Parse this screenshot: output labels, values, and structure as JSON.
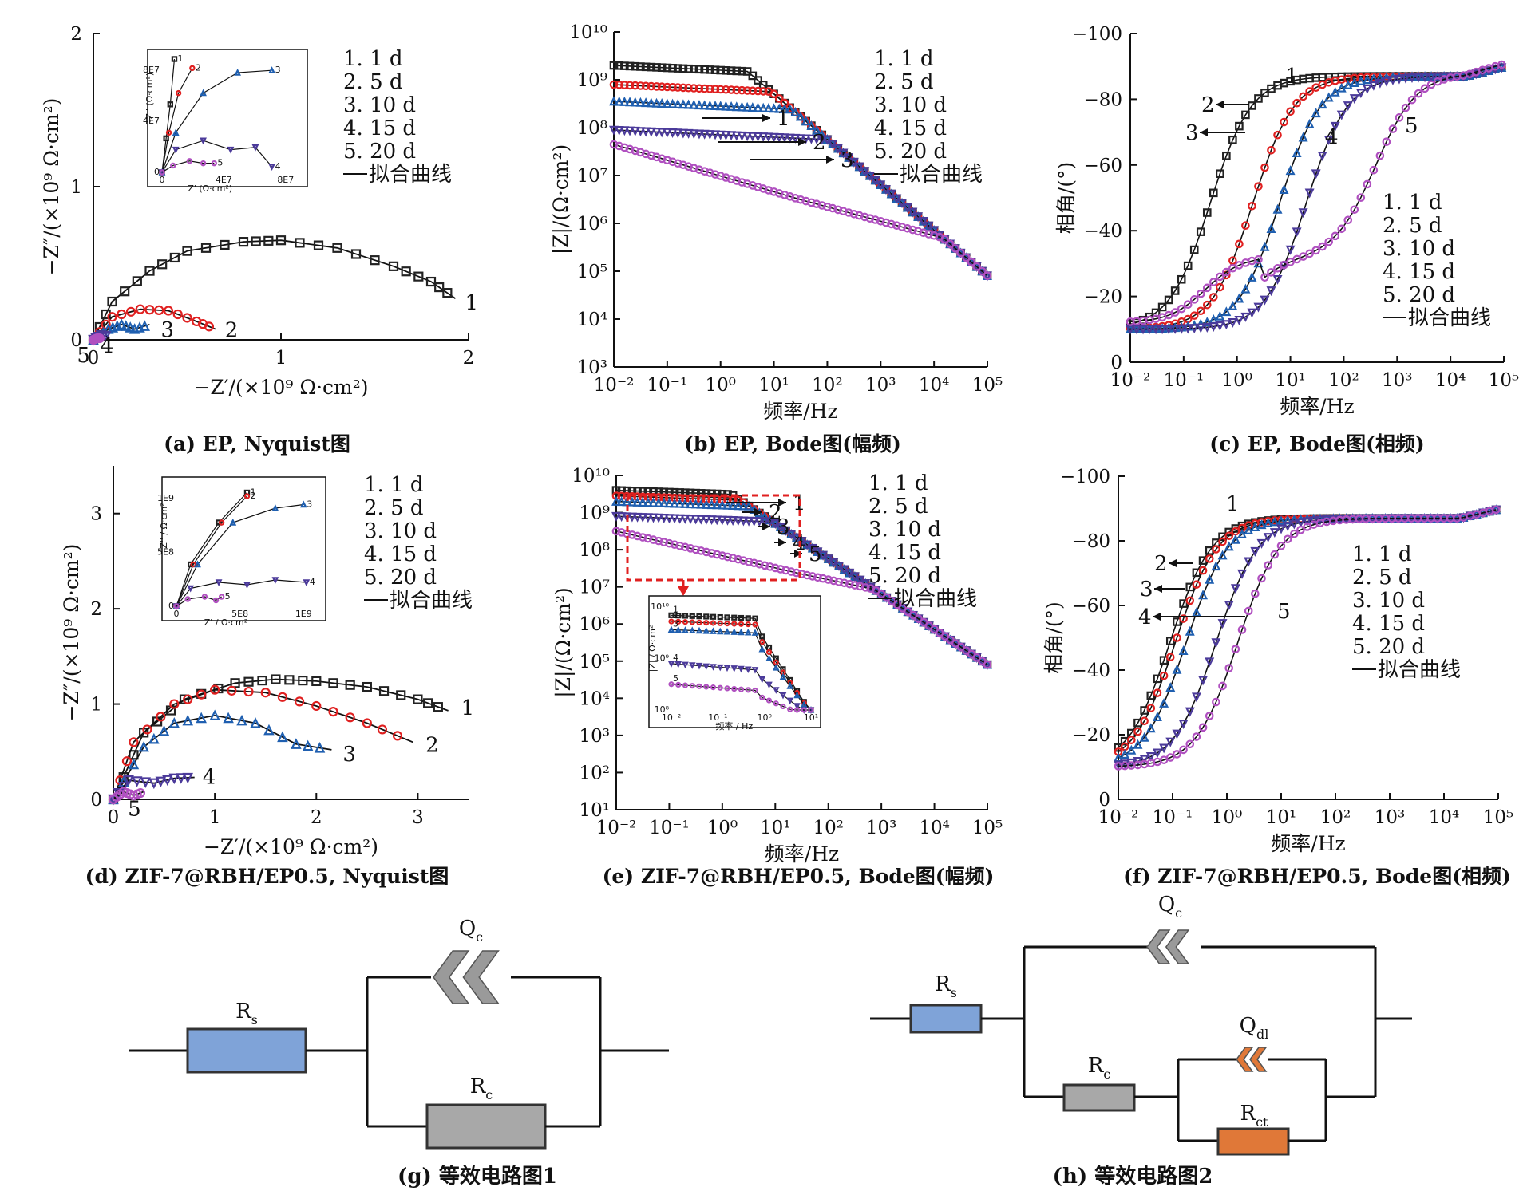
{
  "colors": {
    "s1": "#222222",
    "s2": "#e02020",
    "s3": "#1f5fb0",
    "s4": "#4b3a9a",
    "s5": "#b050c0",
    "fit": "#111111",
    "rs": "#7fa3d8",
    "rc": "#a8a8a8",
    "rct": "#e07838",
    "qc": "#9a9a9a",
    "qdl": "#e07838",
    "arrow": "#111111",
    "redbox": "#e02020"
  },
  "legend": {
    "items": [
      "1. 1 d",
      "2. 5 d",
      "3. 10 d",
      "4. 15 d",
      "5. 20 d"
    ],
    "fit": "拟合曲线"
  },
  "chart_data": [
    {
      "id": "a",
      "type": "scatter",
      "caption": "(a) EP, Nyquist图",
      "xlabel": "−Z′/(×10⁹ Ω·cm²)",
      "ylabel": "−Z″/(×10⁹ Ω·cm²)",
      "xlim": [
        0,
        2
      ],
      "ylim": [
        0,
        2
      ],
      "xticks": [
        "0",
        "1",
        "2"
      ],
      "yticks": [
        "0",
        "1",
        "2"
      ],
      "series": [
        {
          "label": "1",
          "x": [
            0.0,
            0.1,
            0.3,
            0.5,
            0.8,
            1.0,
            1.3,
            1.6,
            1.8,
            1.93
          ],
          "y": [
            0.0,
            0.25,
            0.45,
            0.58,
            0.64,
            0.65,
            0.6,
            0.48,
            0.38,
            0.27
          ]
        },
        {
          "label": "2",
          "x": [
            0.0,
            0.1,
            0.25,
            0.4,
            0.55,
            0.65
          ],
          "y": [
            0.0,
            0.15,
            0.2,
            0.19,
            0.12,
            0.07
          ]
        },
        {
          "label": "3",
          "x": [
            0.0,
            0.08,
            0.15,
            0.22,
            0.3
          ],
          "y": [
            0.0,
            0.07,
            0.1,
            0.07,
            0.1
          ]
        },
        {
          "label": "4",
          "x": [
            0.0,
            0.04,
            0.08
          ],
          "y": [
            0.0,
            0.03,
            0.02
          ]
        },
        {
          "label": "5",
          "x": [
            0.0,
            0.02,
            0.04
          ],
          "y": [
            0.0,
            0.01,
            0.01
          ]
        }
      ],
      "inset": {
        "xlabel": "Z' (Ω·cm²)",
        "ylabel": "-Z'' (Ω·cm²)",
        "xticks": [
          "0",
          "4E7",
          "8E7"
        ],
        "yticks": [
          "0",
          "4E7",
          "8E7"
        ]
      }
    },
    {
      "id": "b",
      "type": "line",
      "caption": "(b) EP, Bode图(幅频)",
      "xlabel": "频率/Hz",
      "ylabel": "|Z|/(Ω·cm²)",
      "xscale": "log",
      "yscale": "log",
      "xlim": [
        -2,
        5
      ],
      "ylim": [
        3,
        10
      ],
      "xticks": [
        "10⁻²",
        "10⁻¹",
        "10⁰",
        "10¹",
        "10²",
        "10³",
        "10⁴",
        "10⁵"
      ],
      "yticks": [
        "10³",
        "10⁴",
        "10⁵",
        "10⁶",
        "10⁷",
        "10⁸",
        "10⁹",
        "10¹⁰"
      ],
      "series": [
        {
          "label": "1",
          "plateau": 9.3
        },
        {
          "label": "2",
          "plateau": 8.9
        },
        {
          "label": "3",
          "plateau": 8.55
        },
        {
          "label": "4",
          "plateau": 7.95
        },
        {
          "label": "5",
          "plateau": 7.65
        }
      ]
    },
    {
      "id": "c",
      "type": "line",
      "caption": "(c) EP, Bode图(相频)",
      "xlabel": "频率/Hz",
      "ylabel": "相角/(°)",
      "xscale": "log",
      "xlim": [
        -2,
        5
      ],
      "ylim": [
        0,
        -100
      ],
      "xticks": [
        "10⁻²",
        "10⁻¹",
        "10⁰",
        "10¹",
        "10²",
        "10³",
        "10⁴",
        "10⁵"
      ],
      "yticks": [
        "0",
        "−20",
        "−40",
        "−60",
        "−80",
        "−100"
      ],
      "series": [
        {
          "label": "1",
          "mid": -0.5
        },
        {
          "label": "2",
          "mid": 0.3
        },
        {
          "label": "3",
          "mid": 0.8
        },
        {
          "label": "4",
          "mid": 1.3
        },
        {
          "label": "5",
          "mid": 2.6
        }
      ]
    },
    {
      "id": "d",
      "type": "scatter",
      "caption": "(d) ZIF-7@RBH/EP0.5, Nyquist图",
      "xlabel": "−Z′/(×10⁹ Ω·cm²)",
      "ylabel": "−Z″/(×10⁹ Ω·cm²)",
      "xlim": [
        0,
        3.5
      ],
      "ylim": [
        0,
        3.5
      ],
      "xticks": [
        "0",
        "1",
        "2",
        "3"
      ],
      "yticks": [
        "0",
        "1",
        "2",
        "3"
      ],
      "series": [
        {
          "label": "1",
          "x": [
            0.0,
            0.3,
            0.7,
            1.2,
            1.6,
            2.0,
            2.5,
            3.0,
            3.3
          ],
          "y": [
            0.0,
            0.7,
            1.05,
            1.22,
            1.26,
            1.24,
            1.18,
            1.05,
            0.93
          ]
        },
        {
          "label": "2",
          "x": [
            0.0,
            0.2,
            0.6,
            1.0,
            1.5,
            2.0,
            2.5,
            2.95
          ],
          "y": [
            0.0,
            0.6,
            1.0,
            1.15,
            1.12,
            0.98,
            0.8,
            0.6
          ]
        },
        {
          "label": "3",
          "x": [
            0.0,
            0.3,
            0.6,
            1.0,
            1.4,
            1.8,
            2.15
          ],
          "y": [
            0.0,
            0.55,
            0.8,
            0.88,
            0.8,
            0.58,
            0.52
          ]
        },
        {
          "label": "4",
          "x": [
            0.0,
            0.15,
            0.4,
            0.6,
            0.8
          ],
          "y": [
            0.0,
            0.2,
            0.17,
            0.22,
            0.23
          ]
        },
        {
          "label": "5",
          "x": [
            0.0,
            0.1,
            0.2,
            0.3
          ],
          "y": [
            0.0,
            0.08,
            0.04,
            0.08
          ]
        }
      ],
      "inset": {
        "xlabel": "Z' / Ω·cm²",
        "ylabel": "-Z'' / Ω·cm²",
        "xticks": [
          "0",
          "5E8",
          "1E9"
        ],
        "yticks": [
          "0",
          "5E8",
          "1E9"
        ]
      }
    },
    {
      "id": "e",
      "type": "line",
      "caption": "(e) ZIF-7@RBH/EP0.5, Bode图(幅频)",
      "xlabel": "频率/Hz",
      "ylabel": "|Z|/(Ω·cm²)",
      "xscale": "log",
      "yscale": "log",
      "xlim": [
        -2,
        5
      ],
      "ylim": [
        1,
        10
      ],
      "xticks": [
        "10⁻²",
        "10⁻¹",
        "10⁰",
        "10¹",
        "10²",
        "10³",
        "10⁴",
        "10⁵"
      ],
      "yticks": [
        "10¹",
        "10²",
        "10³",
        "10⁴",
        "10⁵",
        "10⁶",
        "10⁷",
        "10⁸",
        "10⁹",
        "10¹⁰"
      ],
      "series": [
        {
          "label": "1",
          "plateau": 9.6
        },
        {
          "label": "2",
          "plateau": 9.45
        },
        {
          "label": "3",
          "plateau": 9.3
        },
        {
          "label": "4",
          "plateau": 8.9
        },
        {
          "label": "5",
          "plateau": 8.5
        }
      ],
      "inset": {
        "xlabel": "频率 / Hz",
        "ylabel": "|Z| / Ω·cm²"
      }
    },
    {
      "id": "f",
      "type": "line",
      "caption": "(f) ZIF-7@RBH/EP0.5, Bode图(相频)",
      "xlabel": "频率/Hz",
      "ylabel": "相角/(°)",
      "xscale": "log",
      "xlim": [
        -2,
        5
      ],
      "ylim": [
        0,
        -100
      ],
      "xticks": [
        "10⁻²",
        "10⁻¹",
        "10⁰",
        "10¹",
        "10²",
        "10³",
        "10⁴",
        "10⁵"
      ],
      "yticks": [
        "0",
        "−20",
        "−40",
        "−60",
        "−80",
        "−100"
      ],
      "series": [
        {
          "label": "1",
          "mid": -1.05
        },
        {
          "label": "2",
          "mid": -0.95
        },
        {
          "label": "3",
          "mid": -0.75
        },
        {
          "label": "4",
          "mid": -0.2
        },
        {
          "label": "5",
          "mid": 0.2
        }
      ]
    }
  ],
  "circuits": {
    "g": {
      "caption": "(g) 等效电路图1",
      "Rs": "R",
      "Rs_sub": "s",
      "Qc": "Q",
      "Qc_sub": "c",
      "Rc": "R",
      "Rc_sub": "c"
    },
    "h": {
      "caption": "(h) 等效电路图2",
      "Rs": "R",
      "Rs_sub": "s",
      "Qc": "Q",
      "Qc_sub": "c",
      "Rc": "R",
      "Rc_sub": "c",
      "Qdl": "Q",
      "Qdl_sub": "dl",
      "Rct": "R",
      "Rct_sub": "ct"
    }
  }
}
